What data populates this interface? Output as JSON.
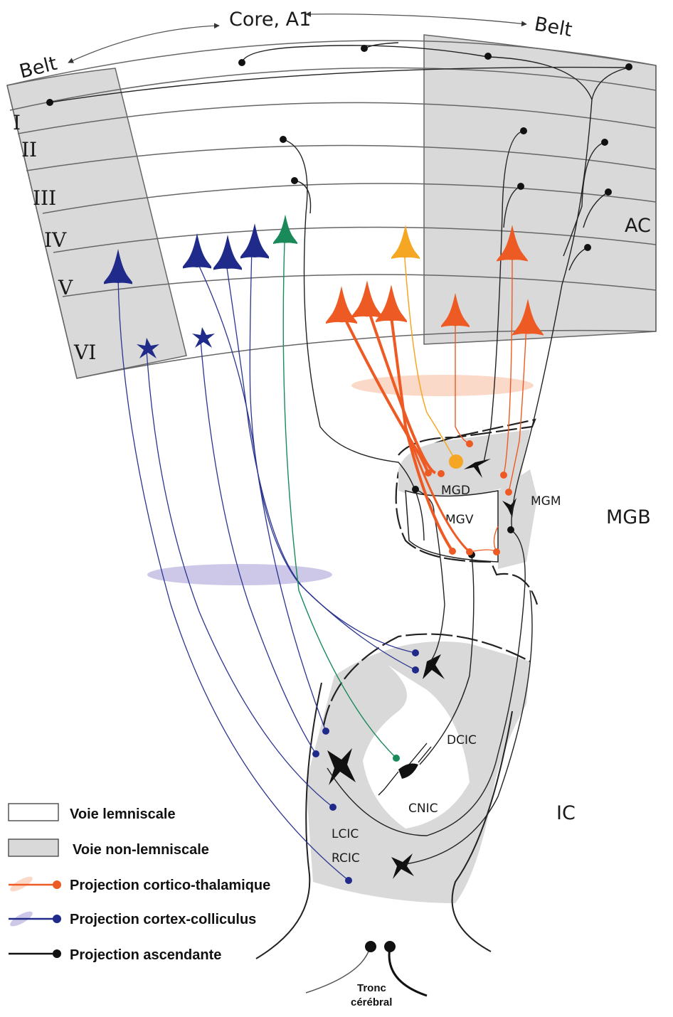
{
  "header": {
    "core_label": "Core, A1",
    "belt_left": "Belt",
    "belt_right": "Belt"
  },
  "layers": [
    "I",
    "II",
    "III",
    "IV",
    "V",
    "VI"
  ],
  "regions": {
    "ac": "AC",
    "mgb": "MGB",
    "ic": "IC",
    "mgd": "MGD",
    "mgv": "MGV",
    "mgm": "MGM",
    "dcic": "DCIC",
    "cnic": "CNIC",
    "lcic": "LCIC",
    "rcic": "RCIC",
    "tronc_line1": "Tronc",
    "tronc_line2": "cérébral"
  },
  "legend": [
    {
      "swatch": "open-box",
      "label": "Voie lemniscale"
    },
    {
      "swatch": "gray-box",
      "label": "Voie non-lemniscale"
    },
    {
      "swatch": "orange-line",
      "label": "Projection cortico-thalamique"
    },
    {
      "swatch": "blue-line",
      "label": "Projection cortex-colliculus"
    },
    {
      "swatch": "black-line",
      "label": "Projection ascendante"
    }
  ],
  "colors": {
    "corticothalamic": "#ee5a24",
    "corticothalamic_yellow": "#f5a623",
    "corticocollicular": "#1f2a8a",
    "green": "#1a8a5a",
    "ascending": "#222222",
    "nonlemniscal_fill": "#d9d9d9",
    "orange_ellipse": "#fbd9c8",
    "blue_ellipse": "#cdc8e8"
  }
}
